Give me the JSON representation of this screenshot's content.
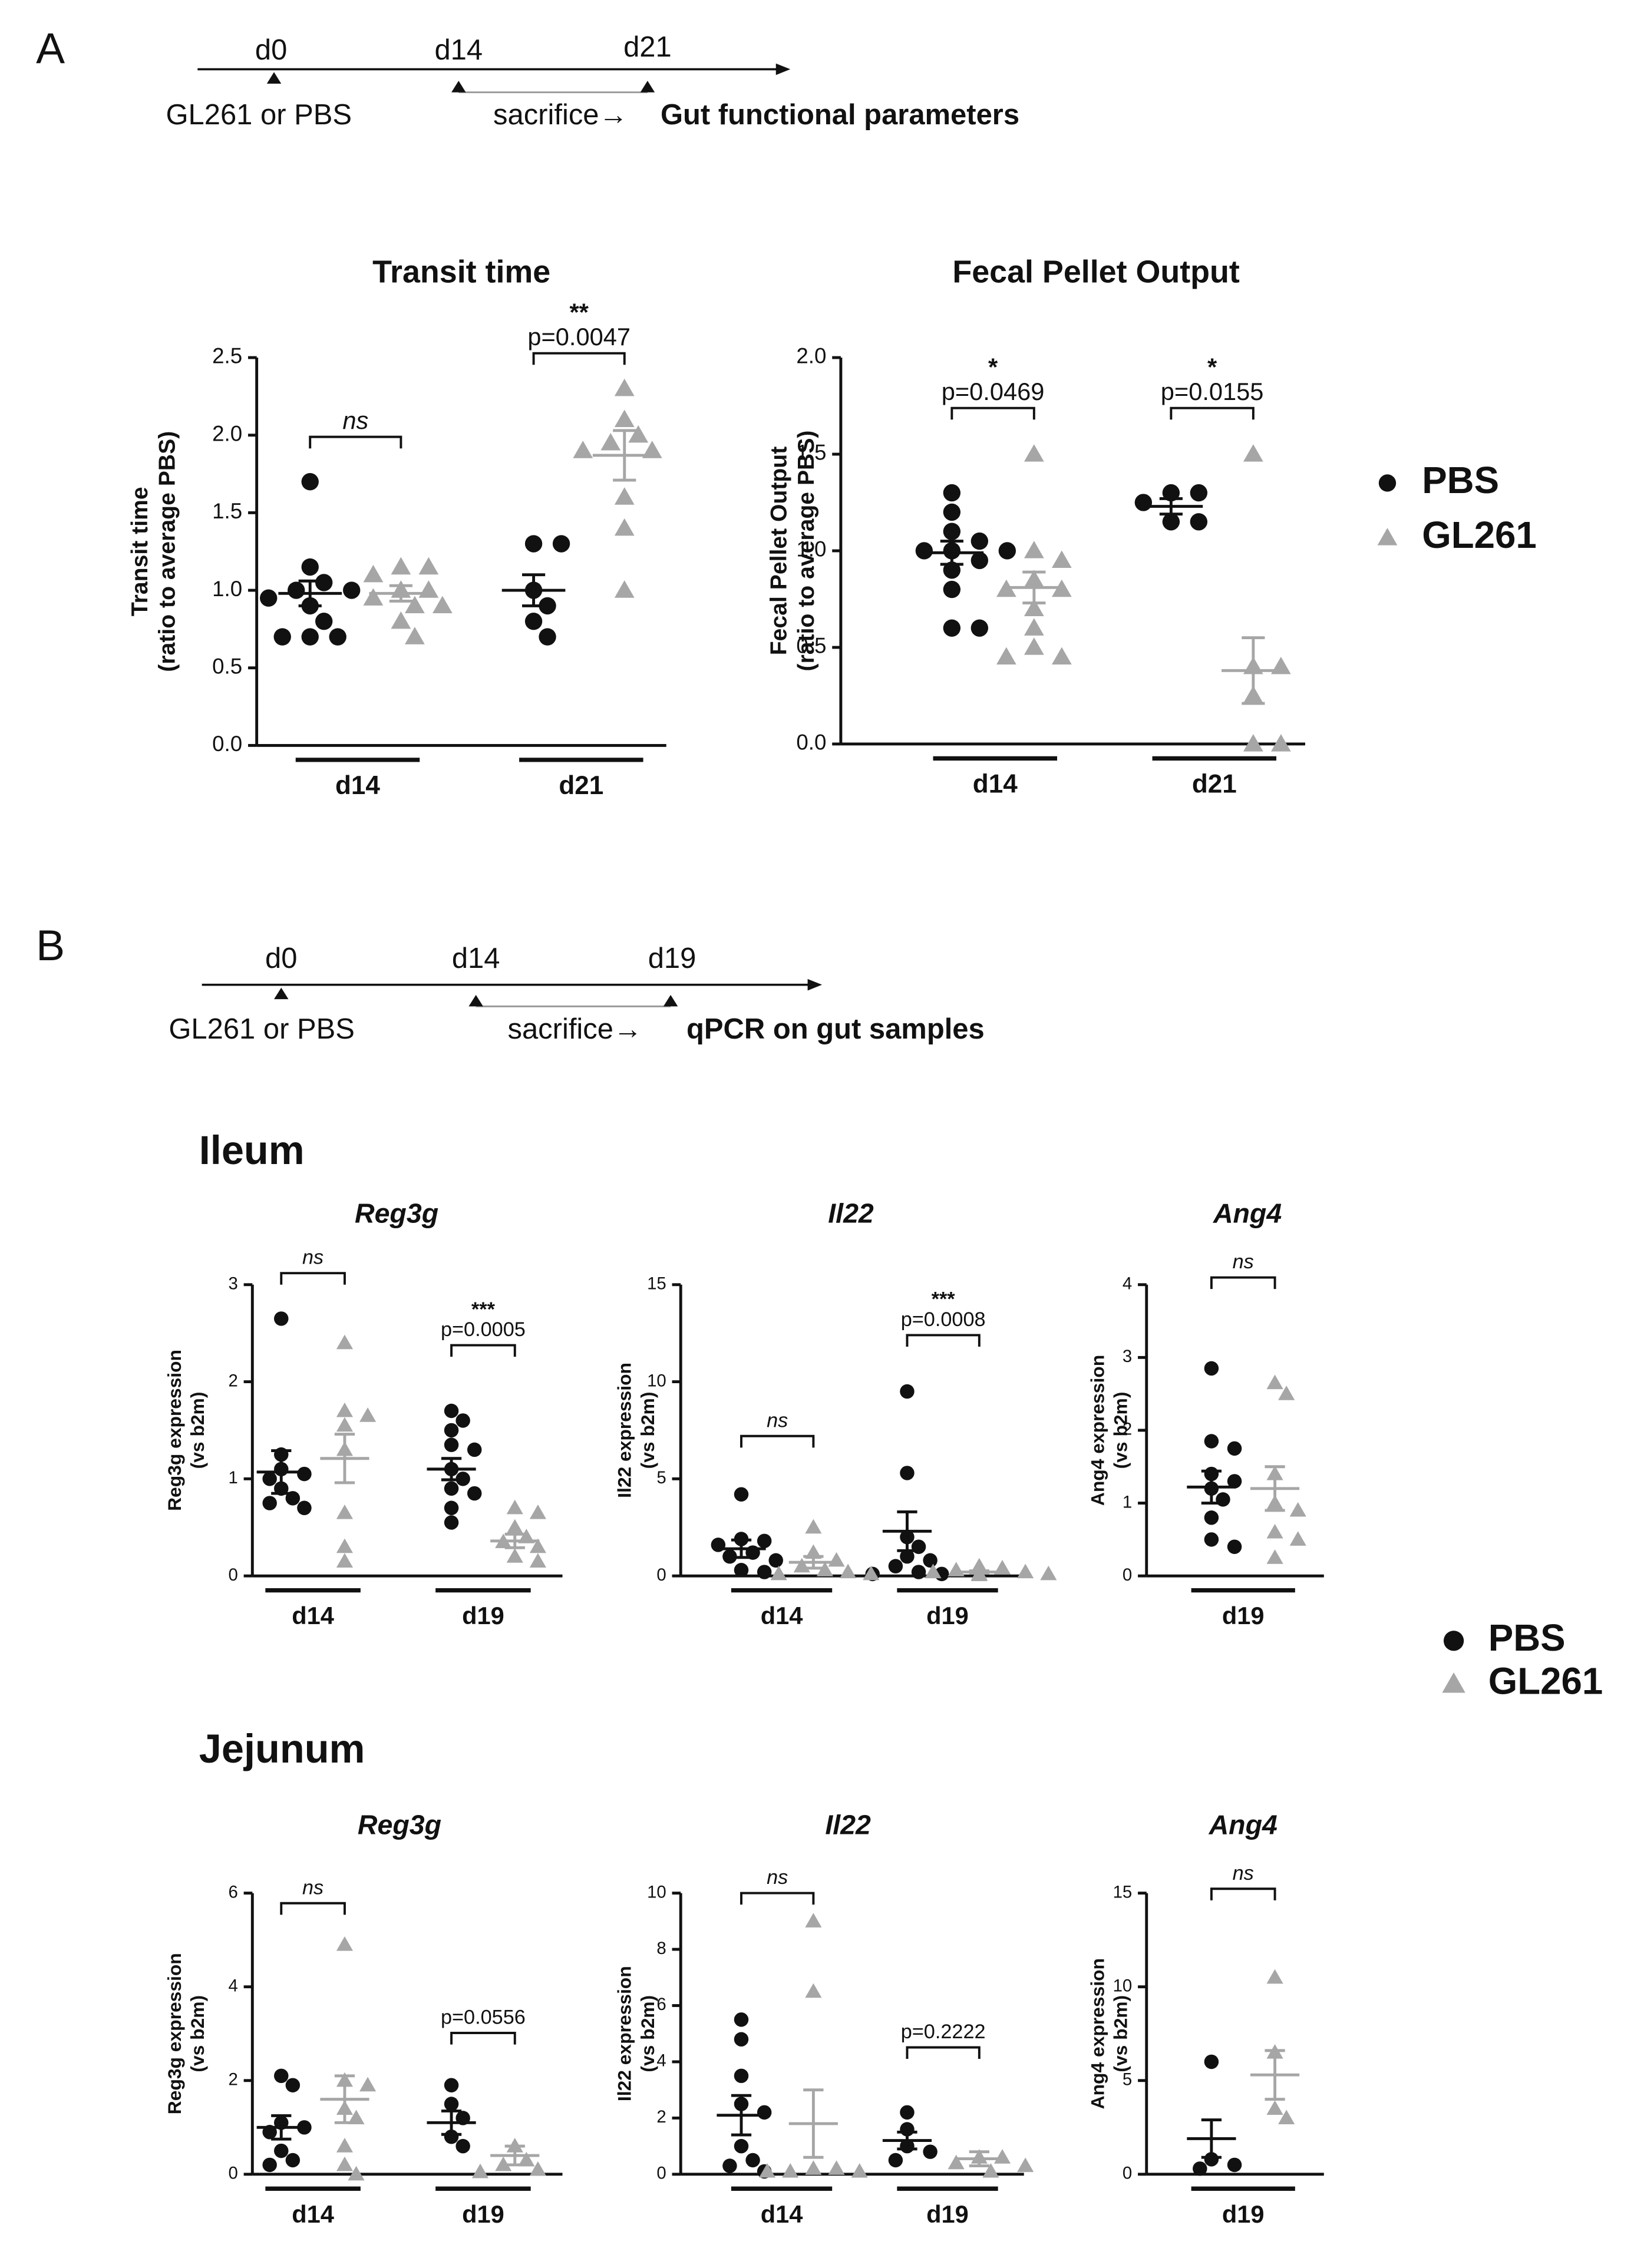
{
  "panel_a": {
    "label": "A",
    "timeline": {
      "days": [
        "d0",
        "d14",
        "d21"
      ],
      "start": "GL261 or PBS",
      "end": "sacrifice→",
      "readout": "Gut functional parameters"
    }
  },
  "panel_b": {
    "label": "B",
    "timeline": {
      "days": [
        "d0",
        "d14",
        "d19"
      ],
      "start": "GL261 or PBS",
      "end": "sacrifice→",
      "readout": "qPCR on gut samples"
    },
    "sections": [
      "Ileum",
      "Jejunum"
    ]
  },
  "chart_data": [
    {
      "type": "scatter",
      "title": "Transit time",
      "ylabel": [
        "Transit time",
        "(ratio to average PBS)"
      ],
      "categories": [
        "d14",
        "d21"
      ],
      "ylim": [
        0,
        2.5
      ],
      "yticks": [
        {
          "value": 0,
          "label": "0.0"
        },
        0.5,
        {
          "value": 1,
          "label": "1.0"
        },
        1.5,
        {
          "value": 2,
          "label": "2.0"
        },
        2.5
      ],
      "series": [
        {
          "name": "PBS",
          "color": "#111111",
          "marker": "circle",
          "values": [
            [
              1.7,
              1.15,
              1.05,
              1.0,
              1.0,
              0.95,
              0.9,
              0.8,
              0.7,
              0.7,
              0.7
            ],
            [
              1.3,
              1.3,
              1.0,
              0.9,
              0.8,
              0.7
            ]
          ],
          "mean": [
            0.98,
            1.0
          ],
          "sem": [
            0.08,
            0.1
          ]
        },
        {
          "name": "GL261",
          "color": "#a6a6a6",
          "marker": "triangle",
          "values": [
            [
              1.15,
              1.15,
              1.1,
              1.0,
              1.0,
              0.95,
              0.9,
              0.9,
              0.8,
              0.7
            ],
            [
              2.3,
              2.1,
              2.0,
              1.95,
              1.9,
              1.9,
              1.6,
              1.4,
              1.0
            ]
          ],
          "mean": [
            0.98,
            1.87
          ],
          "sem": [
            0.05,
            0.16
          ]
        }
      ],
      "annotations": [
        [
          "ns"
        ],
        [
          "**",
          "p=0.0047"
        ]
      ]
    },
    {
      "type": "scatter",
      "title": "Fecal Pellet Output",
      "ylabel": [
        "Fecal Pellet Output",
        "(ratio to average PBS)"
      ],
      "categories": [
        "d14",
        "d21"
      ],
      "ylim": [
        0,
        2
      ],
      "yticks": [
        {
          "value": 0,
          "label": "0.0"
        },
        0.5,
        {
          "value": 1,
          "label": "1.0"
        },
        1.5,
        {
          "value": 2,
          "label": "2.0"
        }
      ],
      "series": [
        {
          "name": "PBS",
          "color": "#111111",
          "marker": "circle",
          "values": [
            [
              1.3,
              1.2,
              1.1,
              1.05,
              1.0,
              1.0,
              1.0,
              0.95,
              0.9,
              0.8,
              0.6,
              0.6
            ],
            [
              1.3,
              1.3,
              1.25,
              1.15,
              1.15
            ]
          ],
          "mean": [
            0.99,
            1.23
          ],
          "sem": [
            0.06,
            0.04
          ]
        },
        {
          "name": "GL261",
          "color": "#a6a6a6",
          "marker": "triangle",
          "values": [
            [
              1.5,
              1.0,
              0.95,
              0.85,
              0.8,
              0.8,
              0.7,
              0.6,
              0.5,
              0.45,
              0.45
            ],
            [
              1.5,
              0.4,
              0.4,
              0.25,
              0.0,
              0.0
            ]
          ],
          "mean": [
            0.81,
            0.38
          ],
          "sem": [
            0.08,
            0.17
          ]
        }
      ],
      "annotations": [
        [
          "*",
          "p=0.0469"
        ],
        [
          "*",
          "p=0.0155"
        ]
      ]
    },
    {
      "type": "scatter",
      "title": "Reg3g",
      "title_style": "italic",
      "ylabel": [
        "Reg3g  expression",
        "(vs b2m)"
      ],
      "categories": [
        "d14",
        "d19"
      ],
      "ylim": [
        0,
        3
      ],
      "yticks": [
        0,
        1,
        2,
        3
      ],
      "series": [
        {
          "name": "PBS",
          "color": "#111111",
          "marker": "circle",
          "values": [
            [
              2.65,
              1.25,
              1.1,
              1.05,
              1.0,
              0.9,
              0.8,
              0.75,
              0.7
            ],
            [
              1.7,
              1.6,
              1.5,
              1.35,
              1.3,
              1.1,
              1.0,
              0.9,
              0.85,
              0.7,
              0.55
            ]
          ],
          "mean": [
            1.07,
            1.1
          ],
          "sem": [
            0.22,
            0.11
          ]
        },
        {
          "name": "GL261",
          "color": "#a6a6a6",
          "marker": "triangle",
          "values": [
            [
              2.4,
              1.7,
              1.65,
              1.55,
              1.3,
              0.65,
              0.3,
              0.15
            ],
            [
              0.7,
              0.65,
              0.5,
              0.4,
              0.35,
              0.3,
              0.2,
              0.15
            ]
          ],
          "mean": [
            1.21,
            0.36
          ],
          "sem": [
            0.25,
            0.07
          ]
        }
      ],
      "annotations": [
        [
          "ns"
        ],
        [
          "***",
          "p=0.0005"
        ]
      ]
    },
    {
      "type": "scatter",
      "title": "Il22",
      "title_style": "italic",
      "ylabel": [
        "Il22  expression",
        "(vs b2m)"
      ],
      "categories": [
        "d14",
        "d19"
      ],
      "ylim": [
        0,
        15
      ],
      "yticks": [
        0,
        5,
        10,
        15
      ],
      "series": [
        {
          "name": "PBS",
          "color": "#111111",
          "marker": "circle",
          "values": [
            [
              4.2,
              1.9,
              1.8,
              1.6,
              1.2,
              1.0,
              0.8,
              0.3,
              0.2
            ],
            [
              9.5,
              5.3,
              2.0,
              1.5,
              1.0,
              0.8,
              0.5,
              0.2,
              0.1,
              0.1
            ]
          ],
          "mean": [
            1.4,
            2.3
          ],
          "sem": [
            0.45,
            1.0
          ]
        },
        {
          "name": "GL261",
          "color": "#a6a6a6",
          "marker": "triangle",
          "values": [
            [
              2.5,
              1.2,
              0.8,
              0.5,
              0.3,
              0.2,
              0.1,
              0.1
            ],
            [
              0.5,
              0.4,
              0.3,
              0.2,
              0.2,
              0.1,
              0.1,
              0.05
            ]
          ],
          "mean": [
            0.7,
            0.2
          ],
          "sem": [
            0.3,
            0.06
          ]
        }
      ],
      "annotations": [
        [
          "ns"
        ],
        [
          "***",
          "p=0.0008"
        ]
      ]
    },
    {
      "type": "scatter",
      "title": "Ang4",
      "title_style": "italic",
      "ylabel": [
        "Ang4 expression",
        "(vs b2m)"
      ],
      "categories": [
        "d19"
      ],
      "ylim": [
        0,
        4
      ],
      "yticks": [
        0,
        1,
        2,
        3,
        4
      ],
      "series": [
        {
          "name": "PBS",
          "color": "#111111",
          "marker": "circle",
          "values": [
            [
              2.85,
              1.85,
              1.75,
              1.4,
              1.3,
              1.2,
              1.05,
              0.8,
              0.5,
              0.4
            ]
          ],
          "mean": [
            1.22
          ],
          "sem": [
            0.22
          ]
        },
        {
          "name": "GL261",
          "color": "#a6a6a6",
          "marker": "triangle",
          "values": [
            [
              2.65,
              2.5,
              1.4,
              1.0,
              0.9,
              0.6,
              0.5,
              0.25
            ]
          ],
          "mean": [
            1.2
          ],
          "sem": [
            0.3
          ]
        }
      ],
      "annotations": [
        [
          "ns"
        ]
      ]
    },
    {
      "type": "scatter",
      "title": "Reg3g",
      "title_style": "italic",
      "ylabel": [
        "Reg3g  expression",
        "(vs b2m)"
      ],
      "categories": [
        "d14",
        "d19"
      ],
      "ylim": [
        0,
        6
      ],
      "yticks": [
        0,
        2,
        4,
        6
      ],
      "series": [
        {
          "name": "PBS",
          "color": "#111111",
          "marker": "circle",
          "values": [
            [
              2.1,
              1.9,
              1.1,
              1.0,
              0.9,
              0.5,
              0.3,
              0.2
            ],
            [
              1.9,
              1.5,
              1.2,
              0.8,
              0.6
            ]
          ],
          "mean": [
            1.0,
            1.1
          ],
          "sem": [
            0.25,
            0.25
          ]
        },
        {
          "name": "GL261",
          "color": "#a6a6a6",
          "marker": "triangle",
          "values": [
            [
              4.9,
              2.0,
              1.9,
              1.4,
              1.2,
              0.6,
              0.2,
              0.0
            ],
            [
              0.6,
              0.3,
              0.2,
              0.1,
              0.05
            ]
          ],
          "mean": [
            1.6,
            0.4
          ],
          "sem": [
            0.5,
            0.2
          ]
        }
      ],
      "annotations": [
        [
          "ns"
        ],
        [
          "p=0.0556"
        ]
      ]
    },
    {
      "type": "scatter",
      "title": "Il22",
      "title_style": "italic",
      "ylabel": [
        "Il22 expression",
        "(vs b2m)"
      ],
      "categories": [
        "d14",
        "d19"
      ],
      "ylim": [
        0,
        10
      ],
      "yticks": [
        0,
        2,
        4,
        6,
        8,
        10
      ],
      "series": [
        {
          "name": "PBS",
          "color": "#111111",
          "marker": "circle",
          "values": [
            [
              5.5,
              4.8,
              3.5,
              2.5,
              2.2,
              1.0,
              0.5,
              0.3,
              0.1
            ],
            [
              2.2,
              1.6,
              1.0,
              0.8,
              0.5
            ]
          ],
          "mean": [
            2.1,
            1.2
          ],
          "sem": [
            0.7,
            0.3
          ]
        },
        {
          "name": "GL261",
          "color": "#a6a6a6",
          "marker": "triangle",
          "values": [
            [
              9.0,
              6.5,
              0.2,
              0.2,
              0.1,
              0.1,
              0.1
            ],
            [
              0.6,
              0.6,
              0.4,
              0.3,
              0.1
            ]
          ],
          "mean": [
            1.8,
            0.55
          ],
          "sem": [
            1.2,
            0.25
          ]
        }
      ],
      "annotations": [
        [
          "ns"
        ],
        [
          "p=0.2222"
        ]
      ]
    },
    {
      "type": "scatter",
      "title": "Ang4",
      "title_style": "italic",
      "ylabel": [
        "Ang4 expression",
        "(vs b2m)"
      ],
      "categories": [
        "d19"
      ],
      "ylim": [
        0,
        15
      ],
      "yticks": [
        0,
        5,
        10,
        15
      ],
      "series": [
        {
          "name": "PBS",
          "color": "#111111",
          "marker": "circle",
          "values": [
            [
              6.0,
              0.8,
              0.5,
              0.3
            ]
          ],
          "mean": [
            1.9
          ],
          "sem": [
            1.0
          ]
        },
        {
          "name": "GL261",
          "color": "#a6a6a6",
          "marker": "triangle",
          "values": [
            [
              10.5,
              6.5,
              3.5,
              3.0
            ]
          ],
          "mean": [
            5.3
          ],
          "sem": [
            1.3
          ]
        }
      ],
      "annotations": [
        [
          "ns"
        ]
      ]
    }
  ]
}
